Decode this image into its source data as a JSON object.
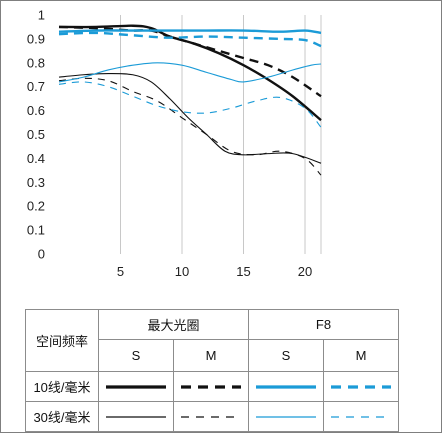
{
  "chart_data": {
    "type": "line",
    "x_ticks": [
      5,
      10,
      15,
      20
    ],
    "y_ticks": [
      0,
      0.1,
      0.2,
      0.3,
      0.4,
      0.5,
      0.6,
      0.7,
      0.8,
      0.9,
      1
    ],
    "y_tick_labels": [
      "0",
      "0.1",
      "0.2",
      "0.3",
      "0.4",
      "0.5",
      "0.6",
      "0.7",
      "0.8",
      "0.9",
      "1"
    ],
    "xlim": [
      0,
      21.3
    ],
    "ylim": [
      0,
      1
    ],
    "grid": "vertical",
    "colors": {
      "max_aperture": "#111111",
      "f8": "#1b9bd7"
    },
    "series": [
      {
        "group": "max_aperture",
        "direction": "S",
        "freq": "10",
        "style": "solid",
        "weight": "thick",
        "x": [
          0,
          3,
          6,
          7.5,
          9,
          11,
          13,
          15,
          17,
          19,
          21.3
        ],
        "y": [
          0.95,
          0.95,
          0.955,
          0.945,
          0.91,
          0.88,
          0.84,
          0.79,
          0.73,
          0.66,
          0.56
        ]
      },
      {
        "group": "max_aperture",
        "direction": "M",
        "freq": "10",
        "style": "dashed",
        "weight": "thick",
        "x": [
          0,
          3,
          6,
          7.5,
          9,
          11,
          13,
          15,
          17,
          19,
          21.3
        ],
        "y": [
          0.95,
          0.945,
          0.935,
          0.935,
          0.91,
          0.88,
          0.85,
          0.82,
          0.79,
          0.74,
          0.66
        ]
      },
      {
        "group": "f8",
        "direction": "S",
        "freq": "10",
        "style": "solid",
        "weight": "thick",
        "x": [
          0,
          3,
          6,
          9,
          12,
          15,
          18,
          20,
          21.3
        ],
        "y": [
          0.93,
          0.935,
          0.935,
          0.935,
          0.935,
          0.935,
          0.93,
          0.935,
          0.925
        ]
      },
      {
        "group": "f8",
        "direction": "M",
        "freq": "10",
        "style": "dashed",
        "weight": "thick",
        "x": [
          0,
          3,
          6,
          9,
          12,
          15,
          18,
          20,
          21.3
        ],
        "y": [
          0.92,
          0.925,
          0.915,
          0.905,
          0.91,
          0.905,
          0.9,
          0.895,
          0.87
        ]
      },
      {
        "group": "max_aperture",
        "direction": "S",
        "freq": "30",
        "style": "solid",
        "weight": "thin",
        "x": [
          0,
          2,
          4,
          6,
          7.5,
          9,
          10.5,
          12,
          13.5,
          15,
          17,
          19,
          21.3
        ],
        "y": [
          0.74,
          0.75,
          0.755,
          0.75,
          0.72,
          0.65,
          0.57,
          0.5,
          0.43,
          0.415,
          0.42,
          0.42,
          0.38
        ]
      },
      {
        "group": "max_aperture",
        "direction": "M",
        "freq": "30",
        "style": "dashed",
        "weight": "thin",
        "x": [
          0,
          2,
          4,
          6,
          8,
          10,
          12,
          14,
          16,
          18,
          20,
          21.3
        ],
        "y": [
          0.725,
          0.735,
          0.725,
          0.68,
          0.64,
          0.57,
          0.5,
          0.43,
          0.415,
          0.43,
          0.4,
          0.33
        ]
      },
      {
        "group": "f8",
        "direction": "S",
        "freq": "30",
        "style": "solid",
        "weight": "thin",
        "x": [
          0,
          2,
          4,
          6,
          8,
          10,
          12,
          14,
          15,
          17,
          19,
          20.5,
          21.3
        ],
        "y": [
          0.72,
          0.74,
          0.77,
          0.79,
          0.8,
          0.79,
          0.76,
          0.73,
          0.72,
          0.74,
          0.77,
          0.79,
          0.795
        ]
      },
      {
        "group": "f8",
        "direction": "M",
        "freq": "30",
        "style": "dashed",
        "weight": "thin",
        "x": [
          0,
          2,
          4,
          6,
          8,
          10,
          12,
          14,
          16,
          18,
          20,
          21.3
        ],
        "y": [
          0.71,
          0.72,
          0.7,
          0.66,
          0.62,
          0.595,
          0.59,
          0.61,
          0.64,
          0.655,
          0.61,
          0.53
        ]
      }
    ]
  },
  "legend": {
    "header_label": "空间频率",
    "group_max_aperture": "最大光圈",
    "group_f8": "F8",
    "sub_s_1": "S",
    "sub_m_1": "M",
    "sub_s_2": "S",
    "sub_m_2": "M",
    "row_10": "10线/毫米",
    "row_30": "30线/毫米"
  }
}
